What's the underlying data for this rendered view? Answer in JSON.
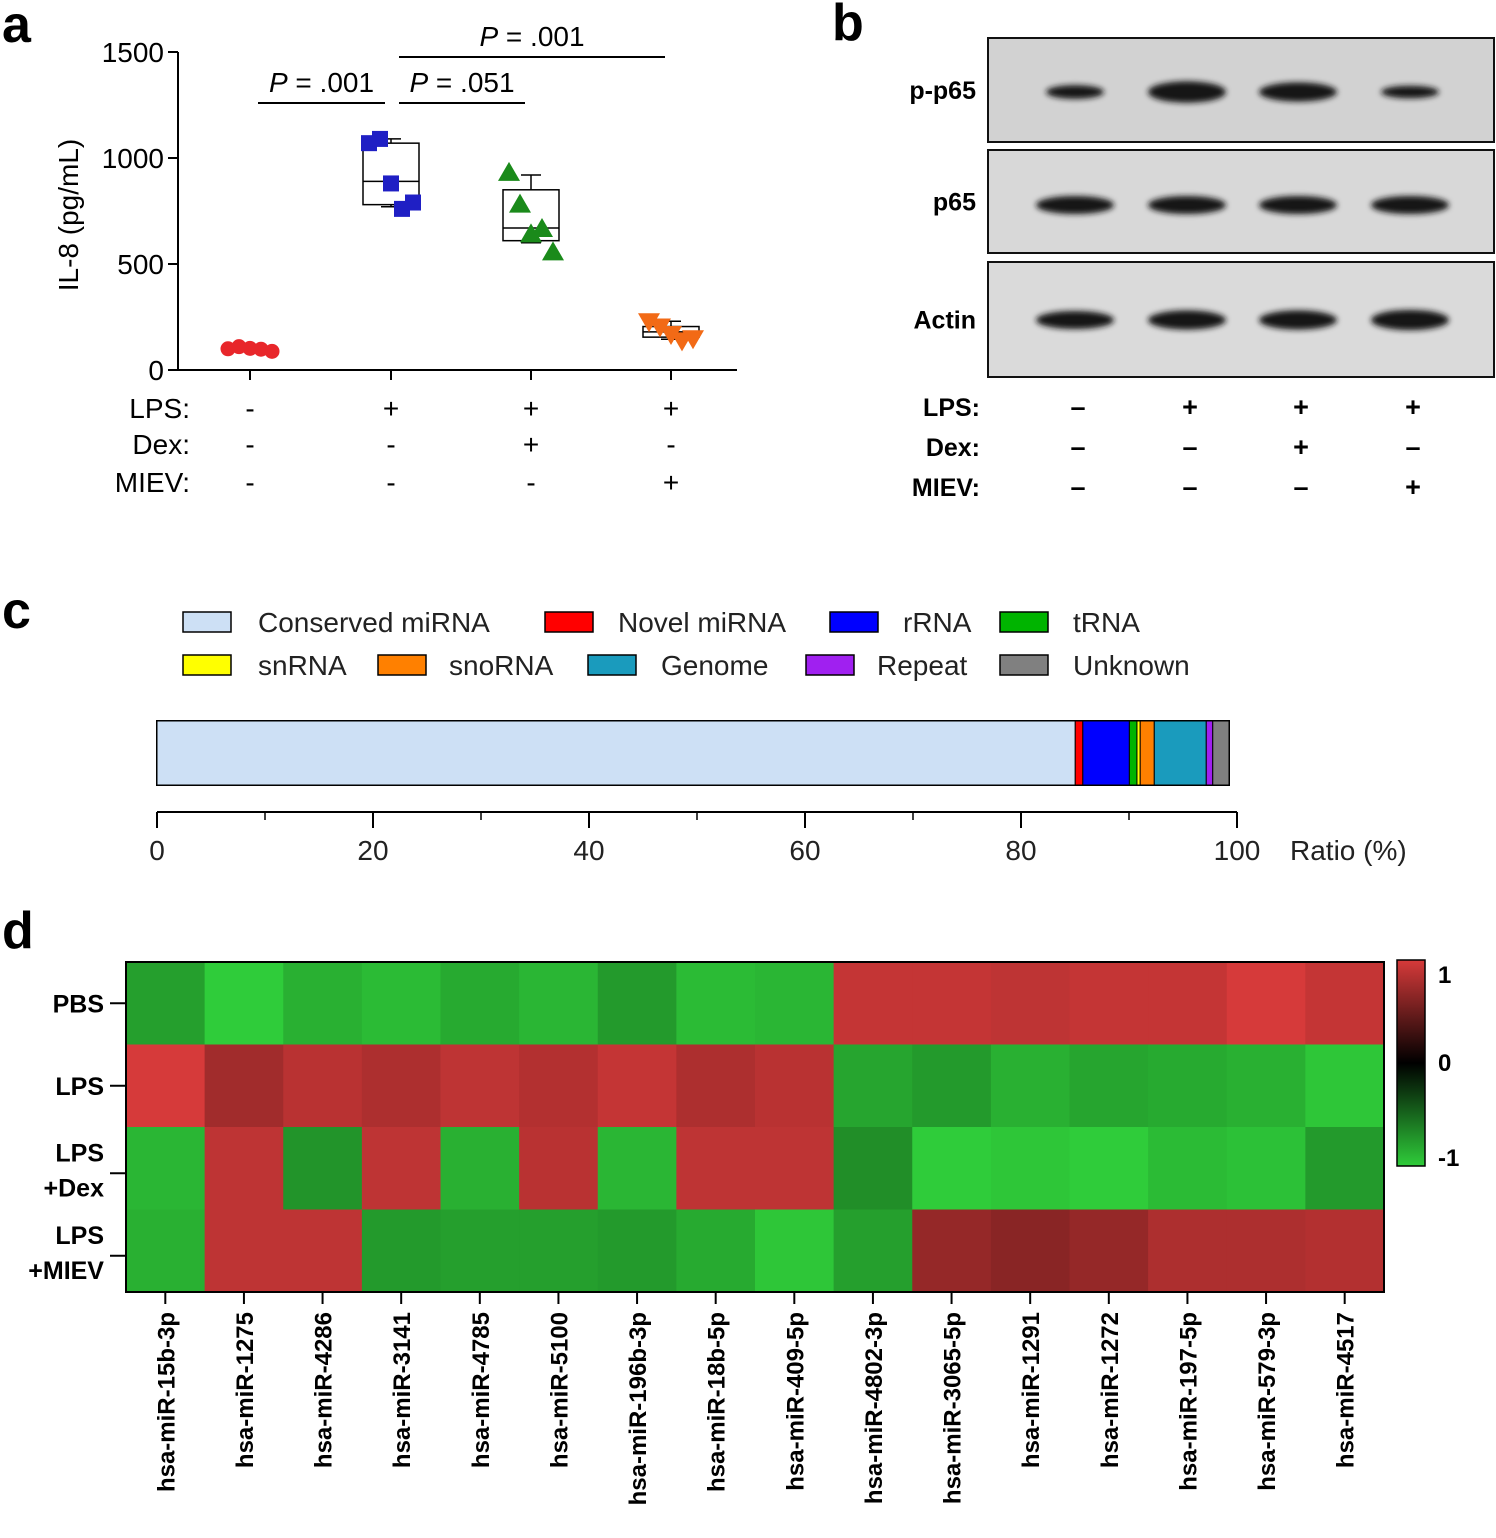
{
  "panel_labels": [
    "a",
    "b",
    "c",
    "d"
  ],
  "chart_data": [
    {
      "panel": "a",
      "type": "scatter",
      "ylabel": "IL-8 (pg/mL)",
      "ylim": [
        0,
        1500
      ],
      "yticks": [
        "0",
        "500",
        "1000",
        "1500"
      ],
      "condition_rows": [
        {
          "label": "LPS:",
          "values": [
            "-",
            "+",
            "+",
            "+"
          ]
        },
        {
          "label": "Dex:",
          "values": [
            "-",
            "-",
            "+",
            "-"
          ]
        },
        {
          "label": "MIEV:",
          "values": [
            "-",
            "-",
            "-",
            "+"
          ]
        }
      ],
      "groups": [
        {
          "marker": "circle",
          "color": "#e8262a",
          "points": [
            100,
            110,
            102,
            98,
            88
          ]
        },
        {
          "marker": "square",
          "color": "#1f1fc4",
          "points": [
            1070,
            1090,
            880,
            760,
            790
          ],
          "box": {
            "min": 770,
            "q1": 780,
            "median": 890,
            "q3": 1070,
            "max": 1090
          }
        },
        {
          "marker": "triangle-up",
          "color": "#1a8a1a",
          "points": [
            930,
            780,
            640,
            665,
            555
          ],
          "box": {
            "min": 600,
            "q1": 610,
            "median": 670,
            "q3": 850,
            "max": 920
          }
        },
        {
          "marker": "triangle-down",
          "color": "#f26a16",
          "points": [
            230,
            205,
            170,
            140,
            150
          ],
          "box": {
            "min": 145,
            "q1": 155,
            "median": 180,
            "q3": 205,
            "max": 230
          }
        }
      ],
      "significance": [
        {
          "text_p": "P",
          "text_val": " = .001",
          "from": 0,
          "to": 1
        },
        {
          "text_p": "P",
          "text_val": " = .051",
          "from": 1,
          "to": 2
        },
        {
          "text_p": "P",
          "text_val": " = .001",
          "from": 1,
          "to": 3
        }
      ]
    },
    {
      "panel": "c",
      "type": "bar",
      "xlabel": "Ratio (%)",
      "xlim": [
        0,
        100
      ],
      "xticks": [
        "0",
        "20",
        "40",
        "60",
        "80",
        "100"
      ],
      "legend": [
        {
          "label": "Conserved miRNA",
          "color": "#cde0f5"
        },
        {
          "label": "Novel miRNA",
          "color": "#ff0000"
        },
        {
          "label": "rRNA",
          "color": "#0000ff"
        },
        {
          "label": "tRNA",
          "color": "#00b400"
        },
        {
          "label": "snRNA",
          "color": "#ffff00"
        },
        {
          "label": "snoRNA",
          "color": "#ff8000"
        },
        {
          "label": "Genome",
          "color": "#1a9bbd"
        },
        {
          "label": "Repeat",
          "color": "#a020f0"
        },
        {
          "label": "Unknown",
          "color": "#808080"
        }
      ],
      "values": [
        84.8,
        0.7,
        4.3,
        0.7,
        0.3,
        1.3,
        4.8,
        0.6,
        1.5
      ]
    },
    {
      "panel": "d",
      "type": "heatmap",
      "rows": [
        "PBS",
        "LPS",
        "LPS +Dex",
        "LPS +MIEV"
      ],
      "row_lines": [
        [
          "PBS"
        ],
        [
          "LPS"
        ],
        [
          "LPS",
          "+Dex"
        ],
        [
          "LPS",
          "+MIEV"
        ]
      ],
      "columns": [
        "hsa-miR-15b-3p",
        "hsa-miR-1275",
        "hsa-miR-4286",
        "hsa-miR-3141",
        "hsa-miR-4785",
        "hsa-miR-5100",
        "hsa-miR-196b-3p",
        "hsa-miR-18b-5p",
        "hsa-miR-409-5p",
        "hsa-miR-4802-3p",
        "hsa-miR-3065-5p",
        "hsa-miR-1291",
        "hsa-miR-1272",
        "hsa-miR-197-5p",
        "hsa-miR-579-3p",
        "hsa-miR-4517"
      ],
      "values": [
        [
          -0.6,
          -1.0,
          -0.75,
          -0.85,
          -0.7,
          -0.8,
          -0.55,
          -0.85,
          -0.8,
          0.85,
          0.85,
          0.8,
          0.85,
          0.85,
          1.0,
          0.85
        ],
        [
          1.0,
          0.55,
          0.75,
          0.65,
          0.8,
          0.7,
          0.85,
          0.65,
          0.75,
          -0.65,
          -0.55,
          -0.75,
          -0.65,
          -0.7,
          -0.75,
          -0.95
        ],
        [
          -0.8,
          0.8,
          -0.5,
          0.8,
          -0.75,
          0.75,
          -0.8,
          0.8,
          0.8,
          -0.45,
          -1.1,
          -0.95,
          -1.05,
          -0.85,
          -0.9,
          -0.55
        ],
        [
          -0.75,
          0.8,
          0.8,
          -0.55,
          -0.6,
          -0.6,
          -0.55,
          -0.7,
          -0.95,
          -0.6,
          0.45,
          0.35,
          0.45,
          0.65,
          0.65,
          0.7
        ]
      ],
      "colorbar": {
        "min": -1,
        "max": 1,
        "ticks": [
          "1",
          "0",
          "-1"
        ],
        "colors": [
          "#2fcc3a",
          "#000000",
          "#d63a3a"
        ]
      }
    }
  ],
  "blot": {
    "rows": [
      {
        "label": "p-p65",
        "band_widths": [
          0.6,
          0.85,
          0.85,
          0.6
        ],
        "band_thickness": [
          0.35,
          0.7,
          0.6,
          0.3
        ]
      },
      {
        "label": "p65",
        "band_widths": [
          0.85,
          0.85,
          0.85,
          0.85
        ],
        "band_thickness": [
          0.55,
          0.55,
          0.55,
          0.55
        ]
      },
      {
        "label": "Actin",
        "band_widths": [
          0.85,
          0.85,
          0.85,
          0.85
        ],
        "band_thickness": [
          0.55,
          0.6,
          0.6,
          0.65
        ]
      }
    ],
    "condition_rows": [
      {
        "label": "LPS:",
        "values": [
          "–",
          "+",
          "+",
          "+"
        ]
      },
      {
        "label": "Dex:",
        "values": [
          "–",
          "–",
          "+",
          "–"
        ]
      },
      {
        "label": "MIEV:",
        "values": [
          "–",
          "–",
          "–",
          "+"
        ]
      }
    ]
  }
}
